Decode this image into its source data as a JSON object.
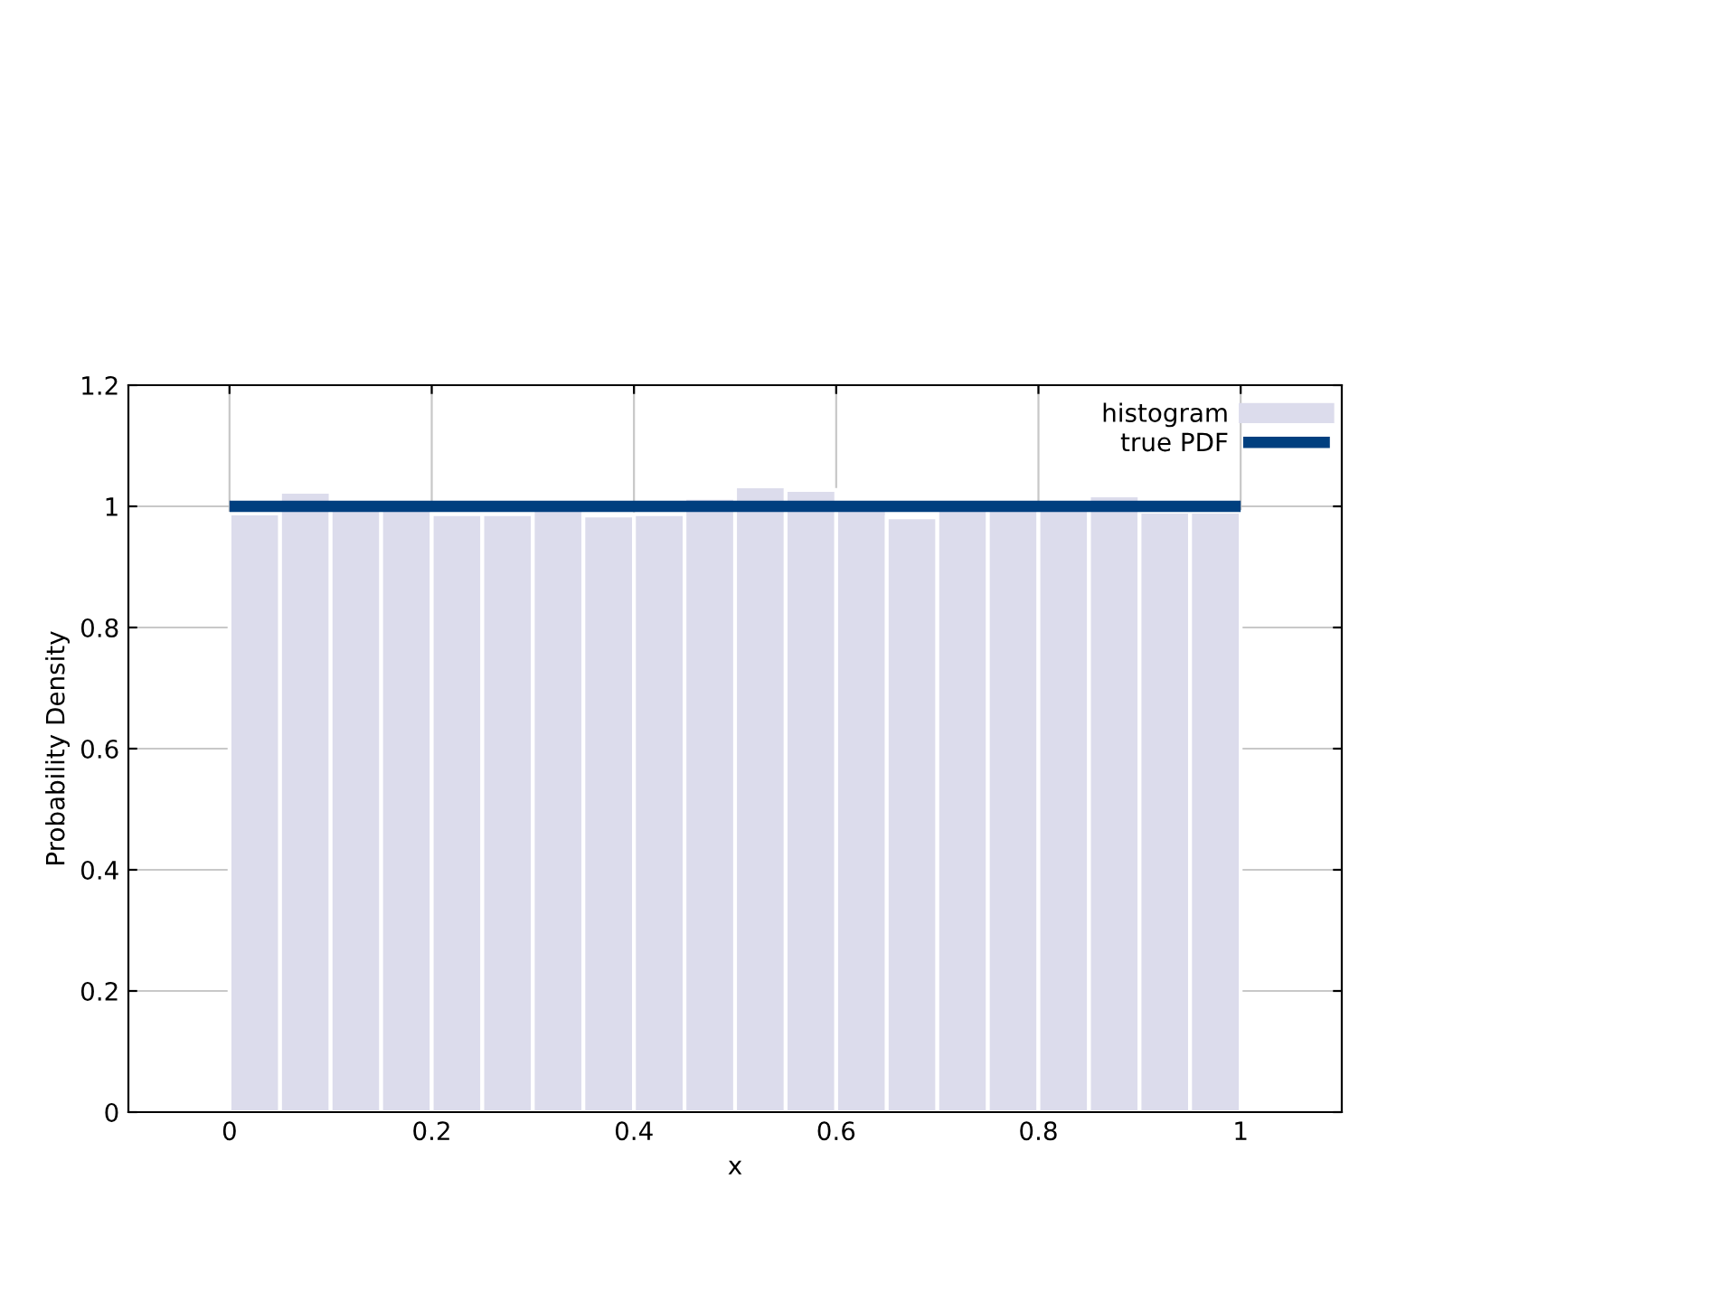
{
  "chart_data": {
    "type": "histogram",
    "xlabel": "x",
    "ylabel": "Probability Density",
    "bins": [
      0,
      0.05,
      0.1,
      0.15,
      0.2,
      0.25,
      0.3,
      0.35,
      0.4,
      0.45,
      0.5,
      0.55,
      0.6,
      0.65,
      0.7,
      0.75,
      0.8,
      0.85,
      0.9,
      0.95,
      1
    ],
    "series": [
      {
        "name": "histogram",
        "color": "#dcdcec",
        "values": [
          0.988,
          1.024,
          1.0,
          1.0,
          0.987,
          0.987,
          1.0,
          0.985,
          0.987,
          1.014,
          1.033,
          1.027,
          1.0,
          0.982,
          1.0,
          1.0,
          1.0,
          1.018,
          0.991,
          0.991
        ]
      },
      {
        "name": "true PDF",
        "type": "line",
        "color": "#003f7f",
        "x": [
          0,
          1
        ],
        "values": [
          1,
          1
        ]
      }
    ],
    "xlim": [
      -0.1,
      1.1
    ],
    "ylim": [
      0,
      1.2
    ],
    "xticks": [
      0,
      0.2,
      0.4,
      0.6,
      0.8,
      1
    ],
    "yticks": [
      0,
      0.2,
      0.4,
      0.6,
      0.8,
      1,
      1.2
    ],
    "grid": true,
    "legend": "top right"
  }
}
